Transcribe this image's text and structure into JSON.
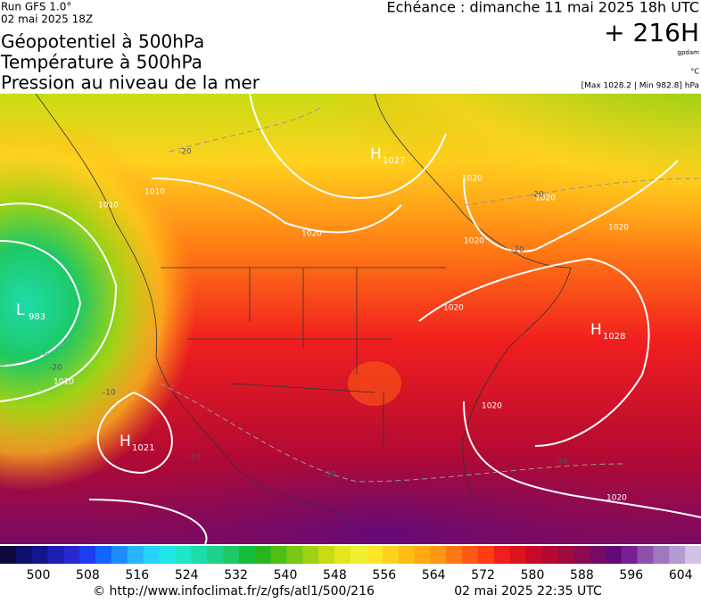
{
  "header": {
    "run": "Run GFS 1.0°",
    "run_date": "02 mai 2025 18Z",
    "titles": [
      "Géopotentiel à 500hPa",
      "Température à 500hPa",
      "Pression au niveau de la mer"
    ],
    "echeance": "Echéance : dimanche 11 mai 2025 18h UTC",
    "lead": "+ 216H",
    "unit_gpdam": "gpdam",
    "unit_temp": "°C",
    "pressure_range": "[Max 1028.2 | Min 982.8] hPa"
  },
  "map": {
    "centers": [
      {
        "letter": "L",
        "value": "983"
      },
      {
        "letter": "H",
        "value": "1027"
      },
      {
        "letter": "H",
        "value": "1028"
      },
      {
        "letter": "H",
        "value": "1021"
      }
    ],
    "isobar_labels": [
      "1010",
      "1020",
      "1020",
      "1020",
      "1020",
      "1020",
      "1010",
      "1010",
      "1020",
      "1020",
      "1020"
    ],
    "isotherm_labels": [
      "-20",
      "-20",
      "-20",
      "-20",
      "-10",
      "-10",
      "-10",
      "-10"
    ]
  },
  "colorbar": {
    "ticks": [
      500,
      508,
      516,
      524,
      532,
      540,
      548,
      556,
      564,
      572,
      580,
      588,
      596,
      604
    ],
    "colors": [
      "#0a0a3c",
      "#0f0f6e",
      "#14148c",
      "#1e1eb4",
      "#2828d2",
      "#1e3cf0",
      "#1464ff",
      "#1e8cff",
      "#28b4ff",
      "#28d2ff",
      "#1ee6e6",
      "#1ee6c8",
      "#1edcaa",
      "#1ed28c",
      "#1ec864",
      "#14be3c",
      "#28b41e",
      "#50be14",
      "#78c814",
      "#a0d214",
      "#c8dc14",
      "#e6e61e",
      "#f0f032",
      "#ffe628",
      "#ffd21e",
      "#ffbe14",
      "#ffaa14",
      "#ff9614",
      "#ff7814",
      "#ff5a14",
      "#ff3c14",
      "#f01e1e",
      "#dc141e",
      "#c80a28",
      "#b40a32",
      "#a00a3c",
      "#8c0a50",
      "#780a64",
      "#640a78",
      "#781e96",
      "#8c50aa",
      "#a078be",
      "#b49bd2",
      "#d2c3e6"
    ]
  },
  "footer": {
    "url": "© http://www.infoclimat.fr/z/gfs/atl1/500/216",
    "generated": "02 mai 2025 22:35 UTC"
  }
}
